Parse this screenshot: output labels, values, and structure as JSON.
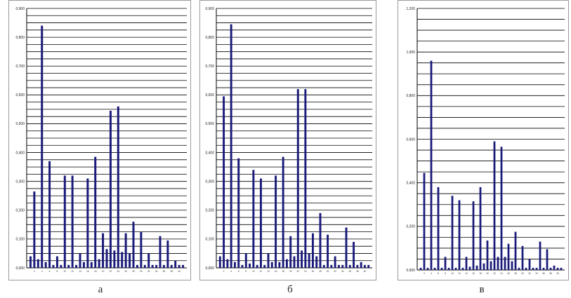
{
  "colors": {
    "bar": "#1a1a7a",
    "grid": "#000000",
    "frame": "#9a9a9a",
    "background": "#ffffff"
  },
  "chart_data": [
    {
      "type": "bar",
      "caption": "а",
      "x": [
        1,
        2,
        3,
        4,
        5,
        6,
        7,
        8,
        9,
        10,
        11,
        12,
        13,
        14,
        15,
        16,
        17,
        18,
        19,
        20,
        21,
        22,
        23,
        24,
        25,
        26,
        27,
        28,
        29,
        30,
        31,
        32,
        33,
        34,
        35,
        36,
        37,
        38,
        39,
        40,
        41
      ],
      "x_tick_labels": [
        "2",
        "4",
        "6",
        "8",
        "10",
        "12",
        "14",
        "16",
        "18",
        "20",
        "22",
        "24",
        "26",
        "28",
        "30",
        "32",
        "34",
        "36",
        "38",
        "40"
      ],
      "values": [
        0.04,
        0.265,
        0.03,
        0.84,
        0.02,
        0.37,
        0.01,
        0.04,
        0.01,
        0.32,
        0.01,
        0.32,
        0.01,
        0.05,
        0.02,
        0.31,
        0.02,
        0.385,
        0.03,
        0.12,
        0.065,
        0.545,
        0.06,
        0.56,
        0.055,
        0.12,
        0.05,
        0.16,
        0.01,
        0.125,
        0.01,
        0.05,
        0.01,
        0.01,
        0.11,
        0.01,
        0.095,
        0.01,
        0.025,
        0.01,
        0.01
      ],
      "y_tick_labels": [
        "0,000",
        "0,100",
        "0,200",
        "0,300",
        "0,400",
        "0,500",
        "0,600",
        "0,700",
        "0,800",
        "0,900"
      ],
      "ylim": [
        0,
        0.9
      ],
      "grid_step": 0.025,
      "grid": true
    },
    {
      "type": "bar",
      "caption": "б",
      "x": [
        1,
        2,
        3,
        4,
        5,
        6,
        7,
        8,
        9,
        10,
        11,
        12,
        13,
        14,
        15,
        16,
        17,
        18,
        19,
        20,
        21,
        22,
        23,
        24,
        25,
        26,
        27,
        28,
        29,
        30,
        31,
        32,
        33,
        34,
        35,
        36,
        37,
        38,
        39,
        40,
        41
      ],
      "x_tick_labels": [
        "2",
        "4",
        "6",
        "8",
        "10",
        "12",
        "14",
        "16",
        "18",
        "20",
        "22",
        "24",
        "26",
        "28",
        "30",
        "32",
        "34",
        "36",
        "38",
        "40"
      ],
      "values": [
        0.04,
        0.595,
        0.03,
        0.845,
        0.02,
        0.38,
        0.01,
        0.05,
        0.015,
        0.34,
        0.01,
        0.31,
        0.01,
        0.05,
        0.02,
        0.32,
        0.02,
        0.385,
        0.03,
        0.11,
        0.04,
        0.62,
        0.06,
        0.62,
        0.05,
        0.12,
        0.04,
        0.19,
        0.01,
        0.115,
        0.01,
        0.04,
        0.01,
        0.01,
        0.14,
        0.01,
        0.09,
        0.01,
        0.02,
        0.01,
        0.01
      ],
      "y_tick_labels": [
        "0,000",
        "0,100",
        "0,200",
        "0,300",
        "0,400",
        "0,500",
        "0,600",
        "0,700",
        "0,800",
        "0,900"
      ],
      "ylim": [
        0,
        0.9
      ],
      "grid_step": 0.025,
      "grid": true
    },
    {
      "type": "bar",
      "caption": "в",
      "x": [
        1,
        2,
        3,
        4,
        5,
        6,
        7,
        8,
        9,
        10,
        11,
        12,
        13,
        14,
        15,
        16,
        17,
        18,
        19,
        20,
        21,
        22,
        23,
        24,
        25,
        26,
        27,
        28,
        29,
        30,
        31,
        32,
        33,
        34,
        35,
        36,
        37,
        38,
        39,
        40,
        41
      ],
      "x_tick_labels": [
        "2",
        "4",
        "6",
        "8",
        "10",
        "12",
        "14",
        "16",
        "18",
        "20",
        "22",
        "24",
        "26",
        "28",
        "30",
        "32",
        "34",
        "36",
        "38",
        "40"
      ],
      "values": [
        0.01,
        0.445,
        0.01,
        0.96,
        0.01,
        0.38,
        0.01,
        0.06,
        0.01,
        0.34,
        0.01,
        0.32,
        0.01,
        0.06,
        0.015,
        0.315,
        0.02,
        0.38,
        0.03,
        0.135,
        0.04,
        0.59,
        0.06,
        0.565,
        0.06,
        0.12,
        0.04,
        0.175,
        0.01,
        0.11,
        0.01,
        0.05,
        0.01,
        0.01,
        0.13,
        0.01,
        0.095,
        0.01,
        0.02,
        0.01,
        0.01
      ],
      "y_tick_labels": [
        "0,000",
        "0,200",
        "0,400",
        "0,600",
        "0,800",
        "1,000",
        "1,200"
      ],
      "ylim": [
        0,
        1.2
      ],
      "grid_step": 0.05,
      "grid": true
    }
  ]
}
